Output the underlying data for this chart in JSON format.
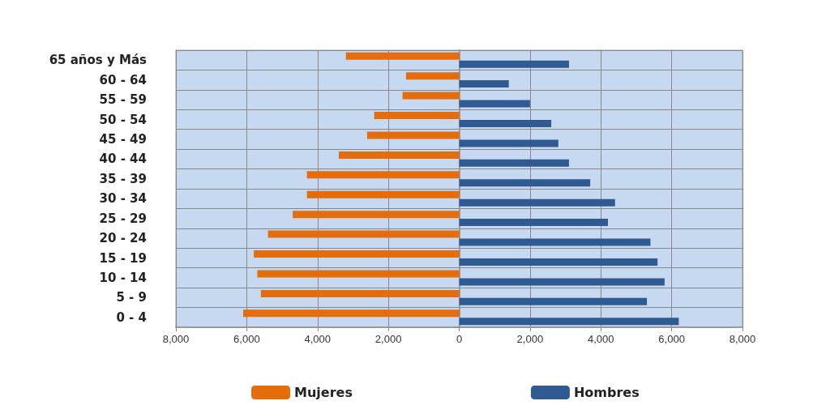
{
  "chart_data": {
    "type": "bar",
    "orientation": "horizontal",
    "categories": [
      "65 años y Más",
      "60 - 64",
      "55 - 59",
      "50 - 54",
      "45 - 49",
      "40 - 44",
      "35 - 39",
      "30 - 34",
      "25 - 29",
      "20 - 24",
      "15 - 19",
      "10 - 14",
      "5 - 9",
      "0 - 4"
    ],
    "series": [
      {
        "name": "Mujeres",
        "color": "#e46c0a",
        "values": [
          -3200,
          -1500,
          -1600,
          -2400,
          -2600,
          -3400,
          -4300,
          -4300,
          -4700,
          -5400,
          -5800,
          -5700,
          -5600,
          -6100
        ]
      },
      {
        "name": "Hombres",
        "color": "#2f5b92",
        "values": [
          3100,
          1400,
          2000,
          2600,
          2800,
          3100,
          3700,
          4400,
          4200,
          5400,
          5600,
          5800,
          5300,
          6200
        ]
      }
    ],
    "xlim": [
      -8000,
      8000
    ],
    "xticks": [
      {
        "value": -8000,
        "label": "8,000"
      },
      {
        "value": -6000,
        "label": "6,000"
      },
      {
        "value": -4000,
        "label": "4,000"
      },
      {
        "value": -2000,
        "label": "2,000"
      },
      0,
      {
        "value": 2000,
        "label": "2,000"
      },
      {
        "value": 4000,
        "label": "4,000"
      },
      {
        "value": 6000,
        "label": "6,000"
      },
      {
        "value": 8000,
        "label": "8,000"
      }
    ],
    "grid": true,
    "legend": "bottom"
  }
}
